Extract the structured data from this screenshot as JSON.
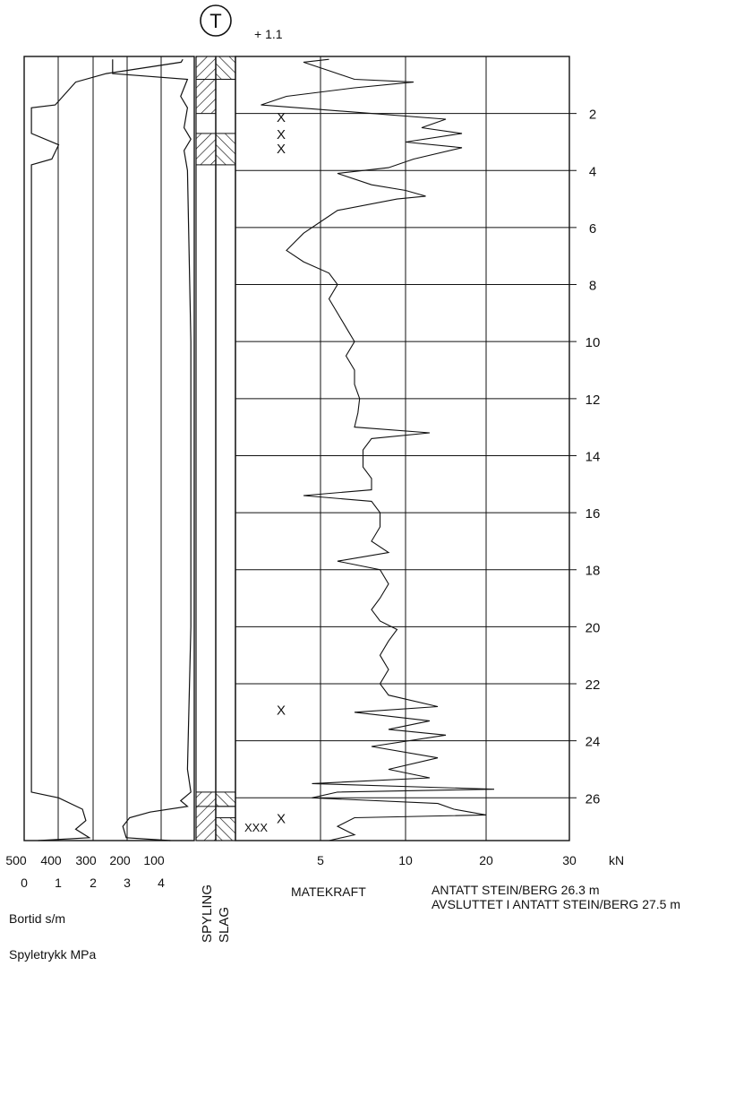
{
  "header": {
    "symbol": "T",
    "elevation": "+ 1.1"
  },
  "columns": {
    "spyling": "SPYLING",
    "slag": "SLAG"
  },
  "captions": {
    "bortid": "Bortid s/m",
    "spyletrykk": "Spyletrykk MPa",
    "matekraft": "MATEKRAFT",
    "note_1": "ANTATT STEIN/BERG 26.3 m",
    "note_2": "AVSLUTTET I ANTATT STEIN/BERG 27.5 m"
  },
  "marks": {
    "x_single": "X",
    "x_triple": "XXX"
  },
  "colors": {
    "line": "#111111",
    "paper": "#ffffff"
  },
  "chart_data": [
    {
      "type": "line",
      "title": "",
      "xlabel": "Bortid s/m",
      "secondary_xlabel": "Spyletrykk MPa",
      "ylabel": "",
      "x_tick_labels": [
        "500",
        "400",
        "300",
        "200",
        "100"
      ],
      "secondary_x_tick_labels": [
        "0",
        "1",
        "2",
        "3",
        "4"
      ],
      "x_range": [
        500,
        0
      ],
      "y_range": [
        0,
        27.5
      ],
      "series": [
        {
          "name": "Bortid s/m",
          "points": [
            [
              35,
              0.1
            ],
            [
              40,
              0.2
            ],
            [
              260,
              0.6
            ],
            [
              350,
              0.9
            ],
            [
              410,
              1.7
            ],
            [
              480,
              1.8
            ],
            [
              480,
              2.7
            ],
            [
              400,
              3.1
            ],
            [
              420,
              3.6
            ],
            [
              480,
              3.8
            ],
            [
              480,
              25.8
            ],
            [
              400,
              26.0
            ],
            [
              330,
              26.4
            ],
            [
              320,
              26.8
            ],
            [
              350,
              27.1
            ],
            [
              310,
              27.4
            ],
            [
              460,
              27.5
            ]
          ]
        },
        {
          "name": "Spyletrykk MPa",
          "points": [
            [
              2.6,
              0.1
            ],
            [
              2.6,
              0.6
            ],
            [
              4.8,
              0.8
            ],
            [
              4.6,
              1.4
            ],
            [
              4.8,
              1.8
            ],
            [
              4.7,
              2.5
            ],
            [
              4.9,
              2.9
            ],
            [
              4.7,
              3.3
            ],
            [
              4.8,
              4.0
            ],
            [
              4.9,
              10
            ],
            [
              4.9,
              20
            ],
            [
              4.8,
              25.0
            ],
            [
              4.9,
              25.8
            ],
            [
              4.6,
              26.1
            ],
            [
              4.8,
              26.3
            ],
            [
              3.7,
              26.5
            ],
            [
              3.1,
              26.7
            ],
            [
              2.9,
              27.0
            ],
            [
              3.0,
              27.4
            ],
            [
              4.3,
              27.5
            ]
          ]
        }
      ]
    },
    {
      "type": "line",
      "title": "",
      "xlabel": "MATEKRAFT",
      "x_unit": "kN",
      "ylabel": "",
      "x_ticks": [
        5,
        10,
        20,
        30
      ],
      "depth_ticks": [
        2,
        4,
        6,
        8,
        10,
        12,
        14,
        16,
        18,
        20,
        22,
        24,
        26
      ],
      "x_range": [
        0,
        30
      ],
      "y_range": [
        0,
        27.5
      ],
      "series": [
        {
          "name": "MATEKRAFT",
          "points": [
            [
              5.5,
              0.1
            ],
            [
              4.0,
              0.2
            ],
            [
              5.5,
              0.5
            ],
            [
              7.0,
              0.8
            ],
            [
              11.0,
              0.9
            ],
            [
              7.0,
              1.1
            ],
            [
              3.0,
              1.4
            ],
            [
              1.5,
              1.7
            ],
            [
              8.0,
              2.0
            ],
            [
              15.0,
              2.2
            ],
            [
              12.0,
              2.5
            ],
            [
              17.0,
              2.7
            ],
            [
              10.0,
              3.0
            ],
            [
              17.0,
              3.2
            ],
            [
              11.0,
              3.6
            ],
            [
              9.0,
              3.9
            ],
            [
              6.0,
              4.1
            ],
            [
              8.0,
              4.5
            ],
            [
              10.0,
              4.7
            ],
            [
              12.5,
              4.9
            ],
            [
              9.5,
              5.0
            ],
            [
              6.0,
              5.4
            ],
            [
              5.0,
              5.8
            ],
            [
              4.0,
              6.2
            ],
            [
              3.0,
              6.8
            ],
            [
              4.0,
              7.2
            ],
            [
              5.5,
              7.6
            ],
            [
              6.0,
              8.0
            ],
            [
              5.5,
              8.5
            ],
            [
              6.0,
              9.0
            ],
            [
              6.5,
              9.5
            ],
            [
              7.0,
              10.0
            ],
            [
              6.5,
              10.5
            ],
            [
              7.0,
              11.0
            ],
            [
              7.0,
              11.5
            ],
            [
              7.3,
              12.0
            ],
            [
              7.2,
              12.5
            ],
            [
              7.0,
              13.0
            ],
            [
              13.0,
              13.2
            ],
            [
              8.0,
              13.4
            ],
            [
              7.5,
              13.8
            ],
            [
              7.5,
              14.4
            ],
            [
              8.0,
              14.8
            ],
            [
              8.0,
              15.2
            ],
            [
              4.0,
              15.4
            ],
            [
              8.0,
              15.6
            ],
            [
              8.5,
              16.0
            ],
            [
              8.5,
              16.5
            ],
            [
              8.0,
              17.0
            ],
            [
              9.0,
              17.4
            ],
            [
              6.0,
              17.7
            ],
            [
              8.5,
              18.0
            ],
            [
              9.0,
              18.5
            ],
            [
              8.5,
              19.0
            ],
            [
              8.0,
              19.4
            ],
            [
              8.5,
              19.8
            ],
            [
              9.5,
              20.1
            ],
            [
              9.0,
              20.5
            ],
            [
              8.5,
              21.0
            ],
            [
              9.0,
              21.5
            ],
            [
              8.5,
              22.0
            ],
            [
              9.0,
              22.4
            ],
            [
              14.0,
              22.8
            ],
            [
              7.0,
              23.0
            ],
            [
              13.0,
              23.3
            ],
            [
              9.0,
              23.6
            ],
            [
              15.0,
              23.8
            ],
            [
              8.0,
              24.2
            ],
            [
              14.0,
              24.6
            ],
            [
              9.0,
              25.0
            ],
            [
              13.0,
              25.3
            ],
            [
              4.5,
              25.5
            ],
            [
              21.0,
              25.7
            ],
            [
              6.0,
              25.8
            ],
            [
              4.5,
              26.0
            ],
            [
              14.0,
              26.2
            ],
            [
              16.0,
              26.4
            ],
            [
              20.0,
              26.6
            ],
            [
              7.0,
              26.7
            ],
            [
              6.0,
              27.0
            ],
            [
              7.0,
              27.3
            ],
            [
              5.5,
              27.5
            ]
          ]
        }
      ]
    }
  ]
}
